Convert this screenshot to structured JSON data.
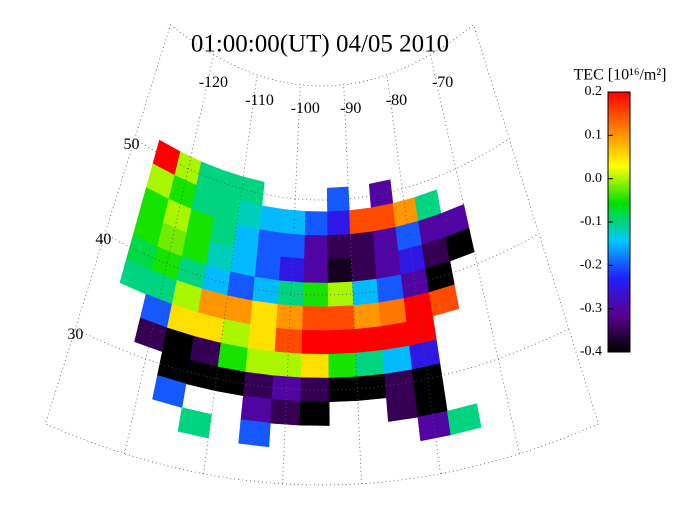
{
  "map_data": {
    "title": "01:00:00(UT)  04/05 2010",
    "colorbar": {
      "label": "TEC [10¹⁶/m²]",
      "lim": [
        -0.4,
        0.2
      ],
      "ticks": [
        0.2,
        0.1,
        {
          "value": 0,
          "label": "0.0"
        },
        -0.1,
        -0.2,
        -0.3,
        -0.4
      ],
      "colormap": [
        "#000000",
        "#5a0090",
        "#2020ff",
        "#00c8ff",
        "#00e000",
        "#ffff00",
        "#ff8000",
        "#ff0000"
      ]
    },
    "meridians": [
      -120,
      -110,
      -100,
      -90,
      -80,
      -70
    ],
    "parallels": [
      30,
      40,
      50
    ],
    "grid_lats": [
      50,
      47.5,
      45,
      42.5,
      40,
      37.5,
      35,
      32.5,
      30,
      27.5,
      25
    ],
    "grid_lons": [
      -124,
      -120,
      -116,
      -112,
      -108,
      -104,
      -100,
      -96,
      -92,
      -88,
      -84,
      -80,
      -76,
      -72,
      -68
    ],
    "tec": [
      [
        0.2,
        0.0,
        -0.1,
        -0.1,
        -0.1,
        null,
        null,
        null,
        -0.2,
        null,
        -0.3,
        null,
        null,
        null,
        null
      ],
      [
        0.0,
        -0.05,
        -0.1,
        -0.1,
        -0.12,
        -0.15,
        -0.15,
        -0.2,
        -0.25,
        0.15,
        0.15,
        0.1,
        -0.1,
        null,
        null
      ],
      [
        -0.05,
        0.0,
        -0.05,
        -0.1,
        -0.15,
        -0.2,
        -0.2,
        -0.3,
        -0.35,
        -0.35,
        -0.3,
        -0.2,
        -0.3,
        -0.3,
        null
      ],
      [
        -0.05,
        -0.02,
        -0.05,
        -0.12,
        -0.15,
        -0.2,
        -0.25,
        -0.3,
        -0.38,
        -0.35,
        -0.3,
        -0.25,
        -0.35,
        -0.4,
        null
      ],
      [
        -0.08,
        -0.05,
        -0.1,
        -0.15,
        -0.2,
        -0.15,
        -0.1,
        -0.05,
        0.0,
        -0.15,
        -0.2,
        -0.3,
        -0.4,
        null,
        null
      ],
      [
        -0.1,
        -0.1,
        0.0,
        0.1,
        0.1,
        0.05,
        0.1,
        0.15,
        0.15,
        0.1,
        0.12,
        0.2,
        0.15,
        null,
        null
      ],
      [
        null,
        -0.2,
        0.05,
        0.05,
        0.0,
        0.05,
        0.15,
        0.2,
        0.2,
        0.2,
        0.2,
        0.2,
        null,
        null,
        null
      ],
      [
        null,
        -0.35,
        -0.4,
        -0.35,
        -0.05,
        0.0,
        0.0,
        0.05,
        -0.05,
        -0.1,
        -0.15,
        -0.25,
        null,
        null,
        null
      ],
      [
        null,
        null,
        -0.4,
        -0.4,
        -0.4,
        -0.35,
        -0.3,
        -0.35,
        -0.4,
        -0.4,
        -0.35,
        -0.4,
        null,
        null,
        null
      ],
      [
        null,
        null,
        -0.2,
        null,
        null,
        -0.3,
        -0.35,
        -0.4,
        null,
        null,
        -0.35,
        -0.4,
        null,
        null,
        null
      ],
      [
        null,
        null,
        null,
        -0.1,
        null,
        -0.2,
        null,
        null,
        null,
        null,
        null,
        -0.3,
        -0.1,
        null,
        null
      ]
    ]
  }
}
